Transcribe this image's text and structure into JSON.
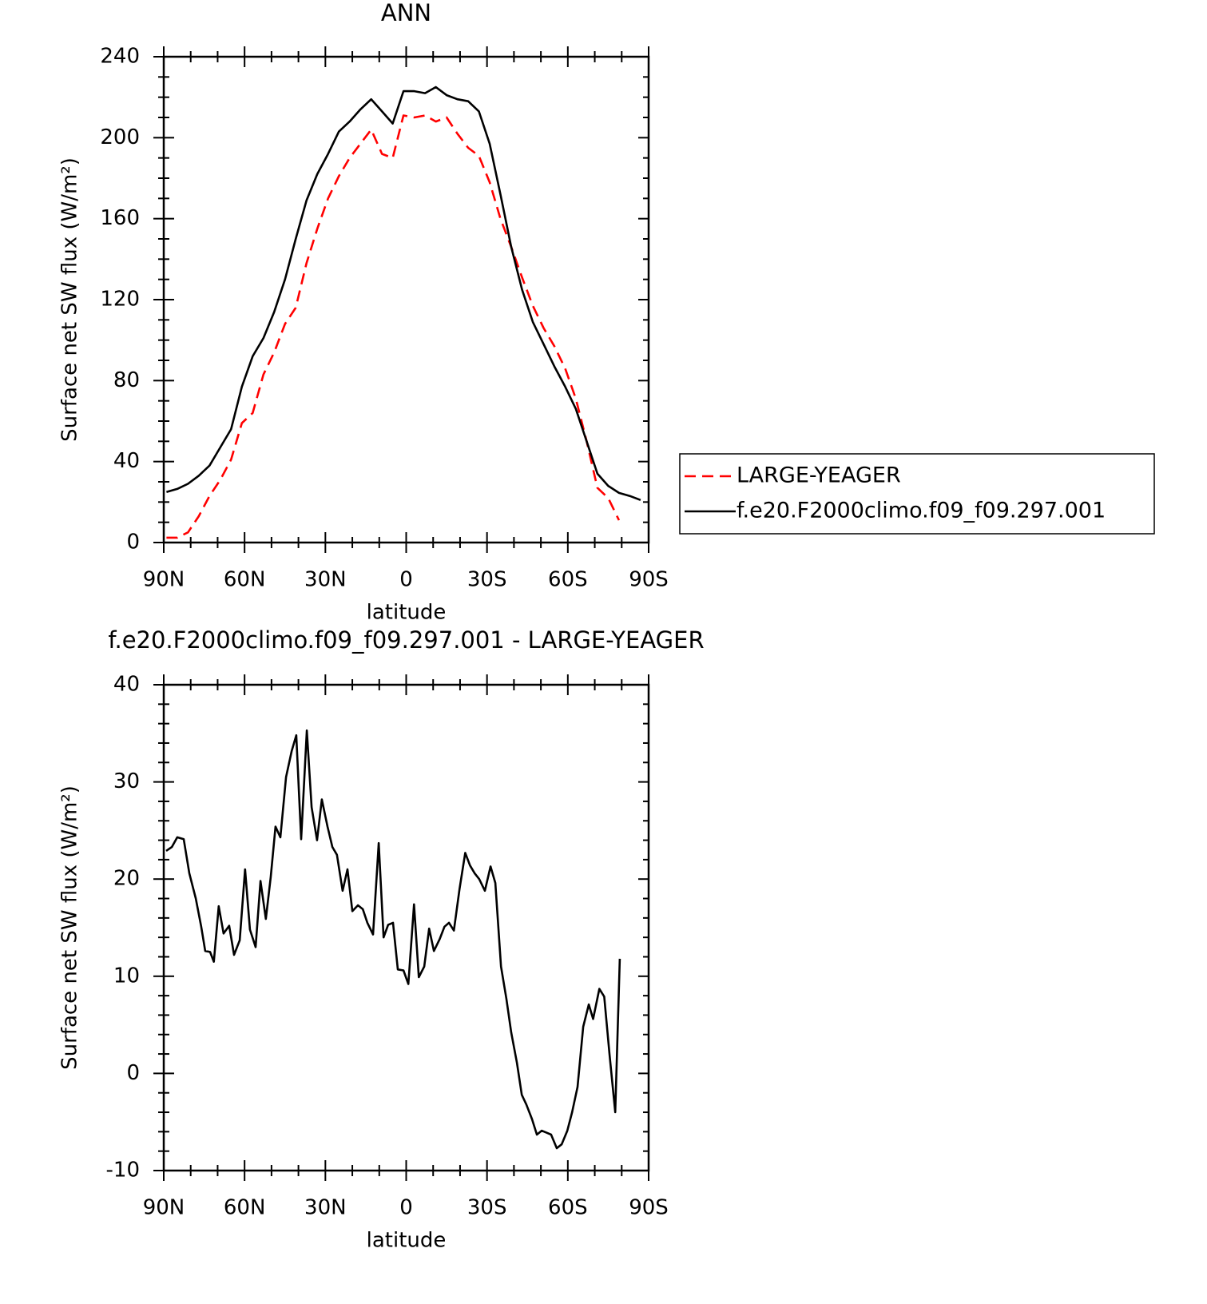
{
  "chart_data": [
    {
      "type": "line",
      "title": "ANN",
      "xlabel": "latitude",
      "ylabel": "Surface net SW flux (W/m²)",
      "x": [
        89,
        85,
        81,
        77,
        73,
        69,
        65,
        61,
        57,
        53,
        49,
        45,
        41,
        37,
        33,
        29,
        25,
        21,
        17,
        13,
        9,
        5,
        1,
        -3,
        -7,
        -11,
        -15,
        -19,
        -23,
        -27,
        -31,
        -35,
        -39,
        -43,
        -47,
        -51,
        -55,
        -59,
        -63,
        -67,
        -71,
        -75,
        -79,
        -83,
        -87
      ],
      "series": [
        {
          "name": "LARGE-YEAGER",
          "color": "#ff0000",
          "dashed": true,
          "values": [
            2.4,
            2.4,
            5,
            13,
            23,
            31,
            41,
            59,
            64,
            83,
            94,
            108,
            116,
            138,
            155,
            170,
            181,
            190,
            197,
            204,
            192,
            190,
            211,
            210,
            211,
            208,
            210,
            202,
            195,
            191,
            178,
            160,
            146,
            131,
            117,
            106,
            97,
            86,
            71,
            50,
            27,
            22,
            11,
            null,
            null
          ]
        },
        {
          "name": "f.e20.F2000climo.f09_f09.297.001",
          "color": "#000000",
          "dashed": false,
          "values": [
            25,
            26.5,
            29,
            33,
            38,
            47,
            56,
            77,
            92,
            101,
            114,
            130,
            150,
            169,
            182,
            192,
            203,
            208,
            214,
            219,
            213,
            207,
            223,
            223,
            222,
            225,
            221,
            219,
            218,
            213,
            197,
            172,
            146,
            125,
            109,
            98,
            87,
            77,
            66,
            50,
            34,
            28,
            24.5,
            23,
            21
          ]
        }
      ],
      "xlim": [
        90,
        -90
      ],
      "xticks": [
        {
          "value": 90,
          "label": "90N"
        },
        {
          "value": 60,
          "label": "60N"
        },
        {
          "value": 30,
          "label": "30N"
        },
        0,
        {
          "value": -30,
          "label": "30S"
        },
        {
          "value": -60,
          "label": "60S"
        },
        {
          "value": -90,
          "label": "90S"
        }
      ],
      "ylim": [
        0,
        240
      ],
      "yticks": [
        0,
        40,
        80,
        120,
        160,
        200,
        240
      ],
      "legend": "outside-right"
    },
    {
      "type": "line",
      "title": "f.e20.F2000climo.f09_f09.297.001 - LARGE-YEAGER",
      "xlabel": "latitude",
      "ylabel": "Surface net SW flux (W/m²)",
      "x": [
        89.1,
        87.0,
        85.0,
        82.6,
        80.5,
        78.1,
        76.1,
        74.6,
        72.8,
        71.4,
        69.6,
        67.8,
        65.7,
        63.9,
        61.8,
        59.8,
        58.0,
        55.9,
        54.1,
        52.1,
        50.3,
        48.5,
        46.7,
        44.6,
        42.5,
        40.8,
        39.0,
        36.9,
        35.1,
        33.1,
        31.3,
        29.2,
        27.4,
        25.7,
        23.6,
        21.8,
        20.0,
        17.9,
        16.1,
        14.4,
        12.3,
        10.2,
        8.4,
        6.7,
        4.9,
        3.1,
        1.0,
        -0.8,
        -2.9,
        -4.7,
        -6.7,
        -8.5,
        -10.3,
        -12.4,
        -14.2,
        -15.9,
        -17.7,
        -19.8,
        -21.9,
        -23.7,
        -25.4,
        -27.1,
        -29.2,
        -31.3,
        -33.1,
        -35.2,
        -37.2,
        -39.0,
        -41.1,
        -42.9,
        -44.6,
        -46.7,
        -48.5,
        -50.3,
        -52.1,
        -53.8,
        -55.9,
        -57.7,
        -59.8,
        -61.6,
        -63.6,
        -65.7,
        -67.8,
        -69.4,
        -71.7,
        -73.5,
        -75.5,
        -77.6,
        -79.3
      ],
      "values": [
        22.9,
        23.3,
        24.3,
        24.1,
        20.6,
        18.0,
        15.1,
        12.6,
        12.5,
        11.5,
        17.2,
        14.4,
        15.2,
        12.2,
        13.7,
        21.0,
        14.8,
        13.0,
        19.8,
        15.9,
        20.2,
        25.4,
        24.3,
        30.5,
        33.2,
        34.8,
        24.1,
        35.3,
        27.4,
        24.0,
        28.2,
        25.4,
        23.3,
        22.5,
        18.8,
        21.0,
        16.7,
        17.3,
        16.9,
        15.5,
        14.3,
        23.7,
        14.0,
        15.3,
        15.5,
        10.7,
        10.6,
        9.2,
        17.4,
        9.9,
        11.0,
        14.9,
        12.6,
        13.8,
        15.1,
        15.5,
        14.7,
        19.0,
        22.7,
        21.4,
        20.6,
        20.0,
        18.8,
        21.3,
        19.6,
        11.0,
        7.7,
        4.2,
        1.1,
        -2.2,
        -3.2,
        -4.7,
        -6.3,
        -5.9,
        -6.1,
        -6.3,
        -7.7,
        -7.3,
        -5.9,
        -4.0,
        -1.4,
        4.8,
        7.1,
        5.6,
        8.7,
        7.9,
        1.9,
        -4.0,
        11.8
      ],
      "color": "#000000",
      "xlim": [
        90,
        -90
      ],
      "xticks": [
        {
          "value": 90,
          "label": "90N"
        },
        {
          "value": 60,
          "label": "60N"
        },
        {
          "value": 30,
          "label": "30N"
        },
        0,
        {
          "value": -30,
          "label": "30S"
        },
        {
          "value": -60,
          "label": "60S"
        },
        {
          "value": -90,
          "label": "90S"
        }
      ],
      "ylim": [
        -10,
        40
      ],
      "yticks": [
        -10,
        0,
        10,
        20,
        30,
        40
      ]
    }
  ]
}
